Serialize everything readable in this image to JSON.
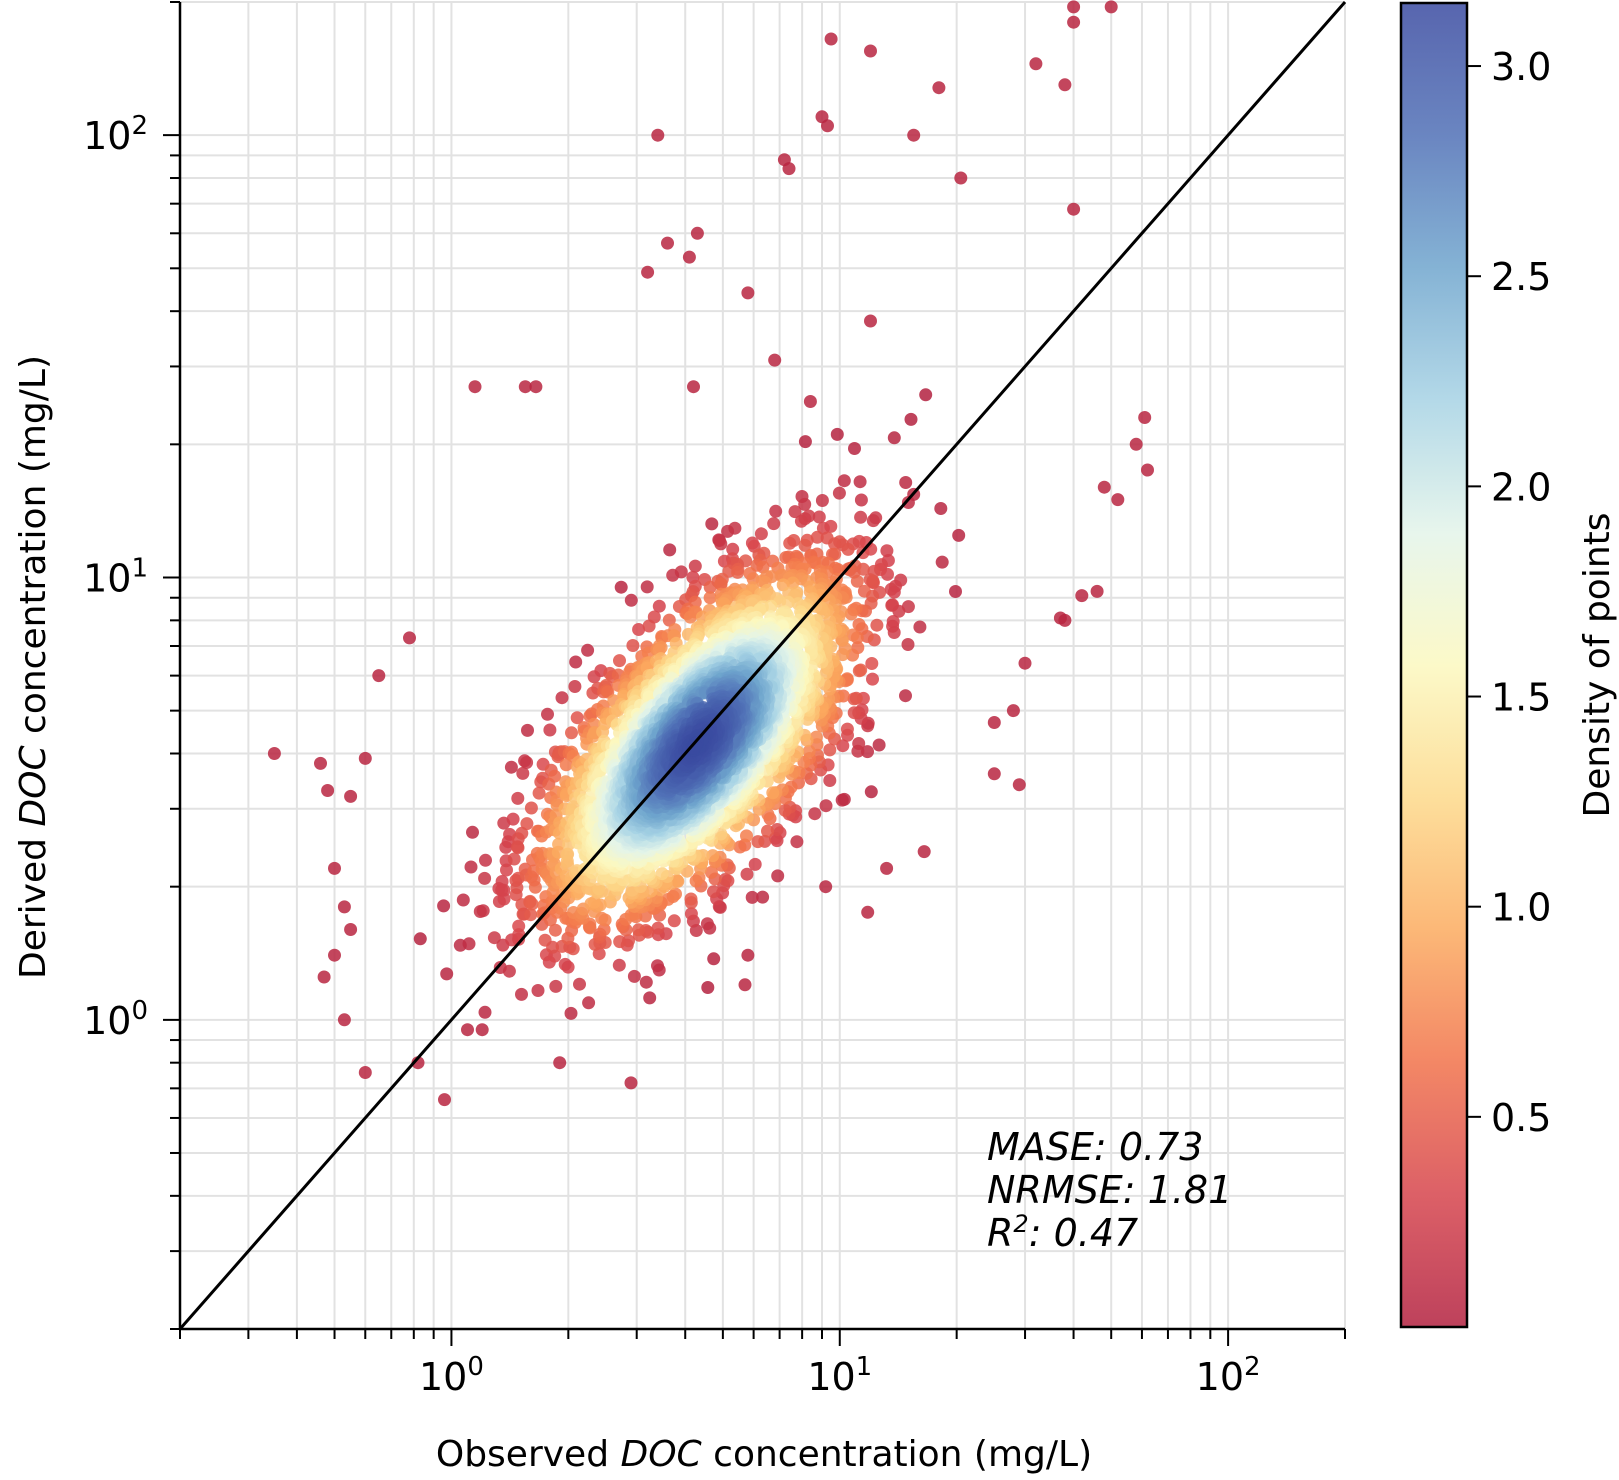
{
  "chart_data": {
    "type": "scatter",
    "xlabel": {
      "prefix": "Observed ",
      "italic": "DOC",
      "suffix": " concentration (mg/L)"
    },
    "ylabel": {
      "prefix": "Derived ",
      "italic": "DOC",
      "suffix": " concentration (mg/L)"
    },
    "xscale": "log",
    "yscale": "log",
    "xlim": [
      0.2,
      200
    ],
    "ylim": [
      0.2,
      200
    ],
    "x_ticks": [
      {
        "value": 1,
        "base": "10",
        "exp": "0"
      },
      {
        "value": 10,
        "base": "10",
        "exp": "1"
      },
      {
        "value": 100,
        "base": "10",
        "exp": "2"
      }
    ],
    "y_ticks": [
      {
        "value": 1,
        "base": "10",
        "exp": "0"
      },
      {
        "value": 10,
        "base": "10",
        "exp": "1"
      },
      {
        "value": 100,
        "base": "10",
        "exp": "2"
      }
    ],
    "grid": true,
    "reference_line": {
      "type": "1:1",
      "color": "#000000"
    },
    "colorbar": {
      "label": "Density of points",
      "range": [
        0.0,
        3.15
      ],
      "ticks": [
        0.5,
        1.0,
        1.5,
        2.0,
        2.5,
        3.0
      ],
      "tick_labels": [
        "0.5",
        "1.0",
        "1.5",
        "2.0",
        "2.5",
        "3.0"
      ],
      "colors": [
        "#b2203f",
        "#d6444c",
        "#f1724a",
        "#fbab5f",
        "#fdd98a",
        "#fbf8bf",
        "#e3f4e9",
        "#a6d2e4",
        "#6fa5cd",
        "#5070b6",
        "#3a4aa0"
      ]
    },
    "stats": [
      {
        "label": "MASE",
        "value": "0.73"
      },
      {
        "label": "NRMSE",
        "value": "1.81"
      },
      {
        "label": "R",
        "sup": "2",
        "value": "0.47"
      }
    ],
    "outliers": [
      [
        40,
        195
      ],
      [
        50,
        195
      ],
      [
        40,
        180
      ],
      [
        9.5,
        165
      ],
      [
        12,
        155
      ],
      [
        32,
        145
      ],
      [
        38,
        130
      ],
      [
        18,
        128
      ],
      [
        9,
        110
      ],
      [
        9.3,
        105
      ],
      [
        3.4,
        100
      ],
      [
        15.5,
        100
      ],
      [
        7.2,
        88
      ],
      [
        7.4,
        84
      ],
      [
        20.5,
        80
      ],
      [
        40,
        68
      ],
      [
        4.3,
        60
      ],
      [
        3.6,
        57
      ],
      [
        4.1,
        53
      ],
      [
        3.2,
        49
      ],
      [
        5.8,
        44
      ],
      [
        12,
        38
      ],
      [
        6.8,
        31
      ],
      [
        1.15,
        27
      ],
      [
        1.55,
        27
      ],
      [
        1.65,
        27
      ],
      [
        4.2,
        27
      ],
      [
        8.4,
        25
      ],
      [
        0.35,
        4.0
      ],
      [
        0.46,
        3.8
      ],
      [
        0.48,
        3.3
      ],
      [
        0.65,
        6.0
      ],
      [
        0.78,
        7.3
      ],
      [
        0.55,
        3.2
      ],
      [
        0.6,
        3.9
      ],
      [
        0.5,
        2.2
      ],
      [
        0.53,
        1.8
      ],
      [
        0.55,
        1.6
      ],
      [
        0.5,
        1.4
      ],
      [
        0.47,
        1.25
      ],
      [
        0.53,
        1.0
      ],
      [
        0.6,
        0.76
      ],
      [
        0.82,
        0.8
      ],
      [
        0.96,
        0.66
      ],
      [
        1.2,
        0.95
      ],
      [
        2.9,
        0.72
      ],
      [
        1.9,
        0.8
      ],
      [
        1.1,
        0.95
      ],
      [
        5.7,
        1.2
      ],
      [
        5.8,
        1.4
      ],
      [
        9.2,
        2.0
      ],
      [
        11.8,
        1.75
      ],
      [
        13.2,
        2.2
      ],
      [
        16.5,
        2.4
      ],
      [
        25,
        3.6
      ],
      [
        29,
        3.4
      ],
      [
        25,
        4.7
      ],
      [
        28,
        5.0
      ],
      [
        30,
        6.4
      ],
      [
        37,
        8.1
      ],
      [
        42,
        9.1
      ],
      [
        46,
        9.3
      ],
      [
        38,
        8.0
      ],
      [
        52,
        15
      ],
      [
        62,
        17.5
      ],
      [
        61,
        23
      ],
      [
        58,
        20
      ],
      [
        48,
        16
      ]
    ],
    "core": {
      "center": [
        4.3,
        4.2
      ],
      "major_axis_log_sd": 0.26,
      "minor_axis_log_sd": 0.12,
      "n_points": 3300
    }
  }
}
